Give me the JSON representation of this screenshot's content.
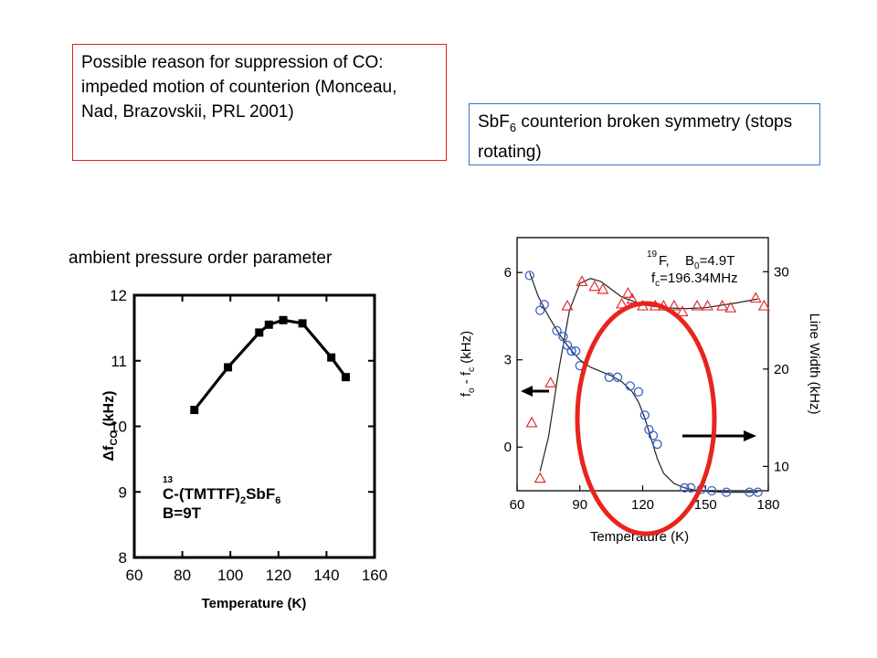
{
  "notes": {
    "suppression": "Possible reason for suppression of CO: impeded motion of counterion (Monceau, Nad, Brazovskii, PRL 2001)",
    "counterion_prefix": "SbF",
    "counterion_sub": "6",
    "counterion_rest": " counterion broken symmetry (stops rotating)",
    "left_caption": "ambient pressure order parameter"
  },
  "chart_data": [
    {
      "type": "line",
      "xlabel": "Temperature (K)",
      "ylabel": "Δf_CO (kHz)",
      "xlim": [
        60,
        160
      ],
      "ylim": [
        8,
        12
      ],
      "xticks": [
        "60",
        "80",
        "100",
        "120",
        "140",
        "160"
      ],
      "yticks": [
        "8",
        "9",
        "10",
        "11",
        "12"
      ],
      "series": [
        {
          "x": [
            85,
            99,
            112,
            116,
            122,
            130,
            142,
            148
          ],
          "y": [
            10.25,
            10.9,
            11.43,
            11.55,
            11.62,
            11.57,
            11.05,
            10.75
          ]
        }
      ],
      "annotation": {
        "sup": "13",
        "line1a": "C-(TMTTF)",
        "sub": "2",
        "line1b": "SbF",
        "sub2": "6",
        "line2": "B=9T"
      },
      "colors": {
        "line": "#000000"
      }
    },
    {
      "type": "scatter",
      "xlabel": "Temperature (K)",
      "ylabel_left": "f_o - f_c (kHz)",
      "ylabel_right": "Line Width (kHz)",
      "xlim": [
        60,
        180
      ],
      "ylim_left": [
        -1.5,
        7.2
      ],
      "ylim_right": [
        7.5,
        33.5
      ],
      "xticks": [
        "60",
        "90",
        "120",
        "150",
        "180"
      ],
      "yticks_left": [
        "0",
        "3",
        "6"
      ],
      "yticks_right": [
        "10",
        "20",
        "30"
      ],
      "legend": {
        "sup": "19",
        "species": "F,",
        "field_sym": "B",
        "field_sub": "0",
        "field_val": "=4.9T",
        "freq_sym": "f",
        "freq_sub": "c",
        "freq_val": "=196.34MHz"
      },
      "series": [
        {
          "axis": "left",
          "marker": "circle",
          "color": "#3a5fcd",
          "x": [
            66,
            71,
            73,
            79,
            82,
            84,
            86,
            88,
            90,
            104,
            108,
            114,
            118,
            121,
            123,
            125,
            127,
            140,
            143,
            148,
            153,
            160,
            171,
            175
          ],
          "y": [
            5.9,
            4.7,
            4.9,
            4.0,
            3.8,
            3.5,
            3.3,
            3.3,
            2.8,
            2.4,
            2.4,
            2.1,
            1.9,
            1.1,
            0.6,
            0.4,
            0.1,
            -1.4,
            -1.4,
            -1.45,
            -1.5,
            -1.55,
            -1.55,
            -1.55
          ]
        },
        {
          "axis": "right",
          "marker": "triangle",
          "color": "#e03030",
          "x": [
            67,
            71,
            76,
            84,
            91,
            97,
            101,
            110,
            113,
            115,
            120,
            126,
            130,
            135,
            139,
            146,
            151,
            158,
            162,
            174,
            178
          ],
          "y": [
            14.5,
            8.8,
            18.6,
            26.5,
            29.0,
            28.5,
            28.2,
            26.7,
            27.8,
            27.2,
            26.5,
            26.5,
            26.5,
            26.5,
            25.9,
            26.5,
            26.5,
            26.5,
            26.3,
            27.3,
            26.5
          ]
        }
      ],
      "fit_left": {
        "x": [
          66,
          70,
          75,
          80,
          85,
          90,
          95,
          100,
          105,
          110,
          115,
          118,
          121,
          124,
          127,
          130,
          135,
          140,
          145,
          150,
          160,
          175
        ],
        "y": [
          6.0,
          5.2,
          4.5,
          3.9,
          3.4,
          3.0,
          2.75,
          2.6,
          2.45,
          2.25,
          1.9,
          1.55,
          1.0,
          0.3,
          -0.4,
          -0.9,
          -1.25,
          -1.4,
          -1.48,
          -1.52,
          -1.55,
          -1.55
        ]
      },
      "fit_right": {
        "x": [
          71,
          75,
          80,
          85,
          90,
          95,
          100,
          105,
          110,
          120,
          130,
          140,
          150,
          165,
          175
        ],
        "y": [
          9.5,
          13.0,
          20.0,
          26.0,
          28.8,
          29.3,
          29.0,
          28.2,
          27.4,
          26.6,
          26.3,
          26.2,
          26.3,
          26.8,
          27.2
        ]
      },
      "arrows": {
        "left_pointing": "left",
        "right_pointing": "right"
      },
      "highlight": {
        "shape": "ellipse",
        "color": "#e8241c"
      }
    }
  ]
}
